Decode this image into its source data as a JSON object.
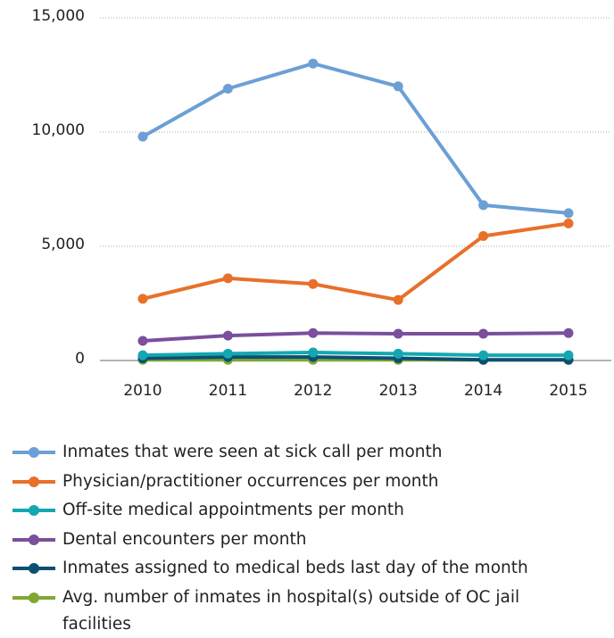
{
  "chart_data": {
    "type": "line",
    "categories": [
      "2010",
      "2011",
      "2012",
      "2013",
      "2014",
      "2015"
    ],
    "series": [
      {
        "name": "Inmates that were seen at sick call per month",
        "color": "#6c9fd5",
        "values": [
          9800,
          11900,
          13000,
          12000,
          6800,
          6450
        ]
      },
      {
        "name": "Physician/practitioner occurrences per month",
        "color": "#e8702a",
        "values": [
          2700,
          3600,
          3350,
          2650,
          5450,
          6000
        ]
      },
      {
        "name": "Off-site medical appointments per month",
        "color": "#13a8b0",
        "values": [
          230,
          300,
          350,
          300,
          230,
          230
        ]
      },
      {
        "name": "Dental encounters per month",
        "color": "#7a4f9d",
        "values": [
          860,
          1090,
          1200,
          1170,
          1170,
          1200
        ]
      },
      {
        "name": "Inmates assigned to medical beds last day of the month",
        "color": "#0d4f72",
        "values": [
          100,
          150,
          150,
          100,
          30,
          30
        ]
      },
      {
        "name": "Avg. number of inmates in hospital(s) outside of OC jail facilities",
        "color": "#7fa832",
        "values": [
          30,
          30,
          30,
          30,
          30,
          30
        ]
      }
    ],
    "ylim": [
      0,
      15000
    ],
    "yticks": [
      {
        "value": 0,
        "label": "0"
      },
      {
        "value": 5000,
        "label": "5,000"
      },
      {
        "value": 10000,
        "label": "10,000"
      },
      {
        "value": 15000,
        "label": "15,000"
      }
    ],
    "grid": true
  }
}
